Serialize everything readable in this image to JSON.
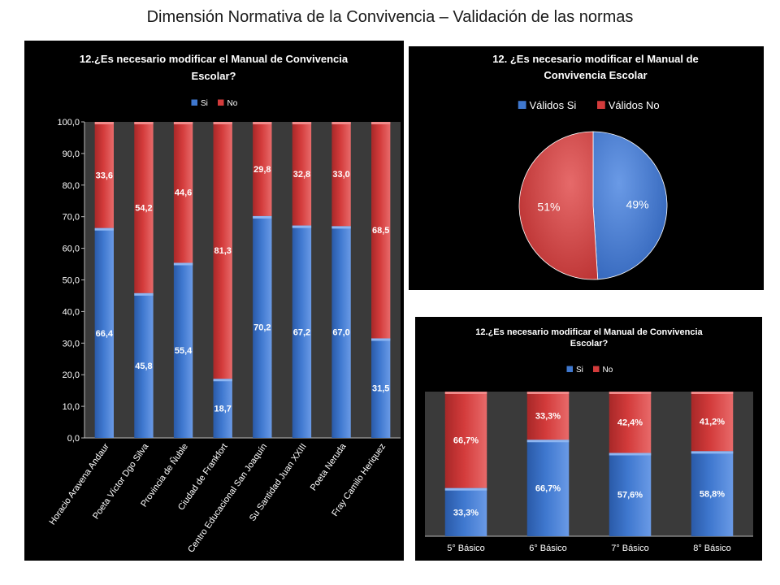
{
  "page": {
    "title": "Dimensión Normativa de la Convivencia – Validación de las normas"
  },
  "colors": {
    "si": "#3f78cf",
    "no": "#d33b3b",
    "plot_bg": "#3a3a3a",
    "panel_bg": "#000000"
  },
  "chart_data": [
    {
      "type": "bar",
      "stacked": true,
      "title_lines": [
        "12.¿Es necesario modificar el Manual de Convivencia",
        "Escolar?"
      ],
      "legend": {
        "position": "top",
        "entries": [
          "Si",
          "No"
        ]
      },
      "categories": [
        "Horacio Aravena Andaur",
        "Poeta Víctor Dgo Silva",
        "Provincia de Ñuble",
        "Ciudad de Frankfort",
        "Centro Educacional San Joaquín",
        "Su Santidad Juan XXIII",
        "Poeta Neruda",
        "Fray Camilo Heriquez"
      ],
      "series": [
        {
          "name": "Si",
          "values": [
            66.4,
            45.8,
            55.4,
            18.7,
            70.2,
            67.2,
            67.0,
            31.5
          ],
          "labels": [
            "66,4",
            "45,8",
            "55,4",
            "18,7",
            "70,2",
            "67,2",
            "67,0",
            "31,5"
          ]
        },
        {
          "name": "No",
          "values": [
            33.6,
            54.2,
            44.6,
            81.3,
            29.8,
            32.8,
            33.0,
            68.5
          ],
          "labels": [
            "33,6",
            "54,2",
            "44,6",
            "81,3",
            "29,8",
            "32,8",
            "33,0",
            "68,5"
          ]
        }
      ],
      "ylim": [
        0,
        100
      ],
      "yticks": [
        0,
        10,
        20,
        30,
        40,
        50,
        60,
        70,
        80,
        90,
        100
      ],
      "ytick_labels": [
        "0,0",
        "10,0",
        "20,0",
        "30,0",
        "40,0",
        "50,0",
        "60,0",
        "70,0",
        "80,0",
        "90,0",
        "100,0"
      ],
      "grid": false
    },
    {
      "type": "pie",
      "title_lines": [
        "12. ¿Es necesario modificar el Manual de",
        "Convivencia Escolar"
      ],
      "legend": {
        "position": "top",
        "entries": [
          "Válidos Si",
          "Válidos No"
        ]
      },
      "slices": [
        {
          "name": "Válidos Si",
          "value": 49,
          "label": "49%"
        },
        {
          "name": "Válidos No",
          "value": 51,
          "label": "51%"
        }
      ]
    },
    {
      "type": "bar",
      "stacked": true,
      "title_lines": [
        "12.¿Es necesario modificar el Manual de Convivencia",
        "Escolar?"
      ],
      "legend": {
        "position": "top",
        "entries": [
          "Si",
          "No"
        ]
      },
      "categories": [
        "5° Básico",
        "6° Básico",
        "7° Básico",
        "8° Básico"
      ],
      "series": [
        {
          "name": "Si",
          "values": [
            33.3,
            66.7,
            57.6,
            58.8
          ],
          "labels": [
            "33,3%",
            "66,7%",
            "57,6%",
            "58,8%"
          ]
        },
        {
          "name": "No",
          "values": [
            66.7,
            33.3,
            42.4,
            41.2
          ],
          "labels": [
            "66,7%",
            "33,3%",
            "42,4%",
            "41,2%"
          ]
        }
      ],
      "ylim": [
        0,
        100
      ],
      "axis_labels": false,
      "grid": false
    }
  ]
}
